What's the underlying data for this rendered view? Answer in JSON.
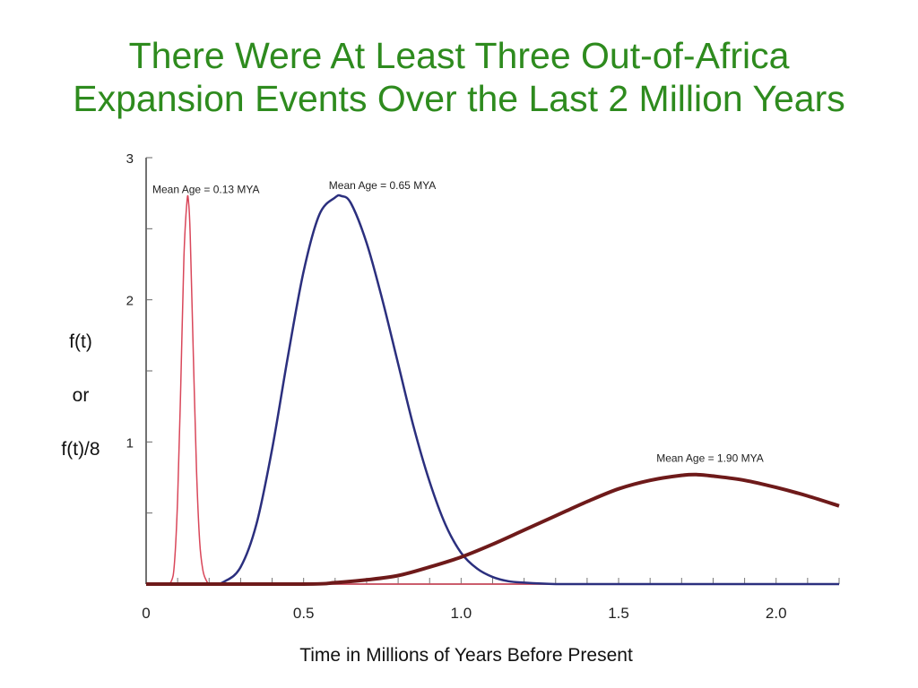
{
  "title": {
    "line1": "There Were At Least Three Out-of-Africa",
    "line2": "Expansion Events Over the Last 2 Million Years"
  },
  "colors": {
    "title": "#2e8b1e",
    "series_recent": "#d9475a",
    "series_middle": "#2b2f7e",
    "series_old": "#6e1a1a"
  },
  "chart_data": {
    "type": "line",
    "xlabel": "Time in Millions of Years Before Present",
    "ylabel_lines": [
      "f(t)",
      "or",
      "f(t)/8"
    ],
    "xlim": [
      0,
      2.2
    ],
    "ylim": [
      0,
      3
    ],
    "x_ticks": [
      0,
      0.5,
      1.0,
      1.5,
      2.0
    ],
    "x_tick_labels": [
      "0",
      "0.5",
      "1.0",
      "1.5",
      "2.0"
    ],
    "y_ticks": [
      1,
      2,
      3
    ],
    "y_tick_labels": [
      "1",
      "2",
      "3"
    ],
    "grid": false,
    "series": [
      {
        "label": "Mean Age = 0.13 MYA",
        "x": [
          0.0,
          0.06,
          0.08,
          0.09,
          0.1,
          0.11,
          0.12,
          0.13,
          0.135,
          0.14,
          0.15,
          0.16,
          0.17,
          0.18,
          0.19,
          0.2,
          0.22,
          2.2
        ],
        "y": [
          0.0,
          0.0,
          0.02,
          0.15,
          0.6,
          1.4,
          2.3,
          2.7,
          2.68,
          2.45,
          1.6,
          0.8,
          0.3,
          0.1,
          0.03,
          0.0,
          0.0,
          0.0
        ]
      },
      {
        "label": "Mean Age = 0.65 MYA",
        "x": [
          0.0,
          0.2,
          0.25,
          0.3,
          0.35,
          0.4,
          0.45,
          0.5,
          0.55,
          0.6,
          0.62,
          0.65,
          0.7,
          0.75,
          0.8,
          0.85,
          0.9,
          0.95,
          1.0,
          1.05,
          1.1,
          1.15,
          1.2,
          1.3,
          1.4,
          2.2
        ],
        "y": [
          0.0,
          0.0,
          0.02,
          0.12,
          0.42,
          0.95,
          1.6,
          2.2,
          2.6,
          2.72,
          2.73,
          2.68,
          2.4,
          2.0,
          1.55,
          1.1,
          0.72,
          0.42,
          0.22,
          0.11,
          0.05,
          0.02,
          0.01,
          0.0,
          0.0,
          0.0
        ]
      },
      {
        "label": "Mean Age = 1.90 MYA",
        "x": [
          0.0,
          0.5,
          0.6,
          0.7,
          0.8,
          0.9,
          1.0,
          1.1,
          1.2,
          1.3,
          1.4,
          1.5,
          1.6,
          1.7,
          1.75,
          1.8,
          1.9,
          2.0,
          2.1,
          2.2
        ],
        "y": [
          0.0,
          0.0,
          0.01,
          0.03,
          0.06,
          0.12,
          0.19,
          0.28,
          0.38,
          0.48,
          0.58,
          0.67,
          0.73,
          0.765,
          0.77,
          0.76,
          0.73,
          0.68,
          0.62,
          0.55
        ]
      }
    ],
    "annotations": [
      {
        "text": "Mean Age = 0.13 MYA",
        "x": 0.02,
        "y": 2.75,
        "series": 0
      },
      {
        "text": "Mean Age = 0.65 MYA",
        "x": 0.58,
        "y": 2.78,
        "series": 1
      },
      {
        "text": "Mean Age = 1.90 MYA",
        "x": 1.62,
        "y": 0.86,
        "series": 2
      }
    ]
  }
}
